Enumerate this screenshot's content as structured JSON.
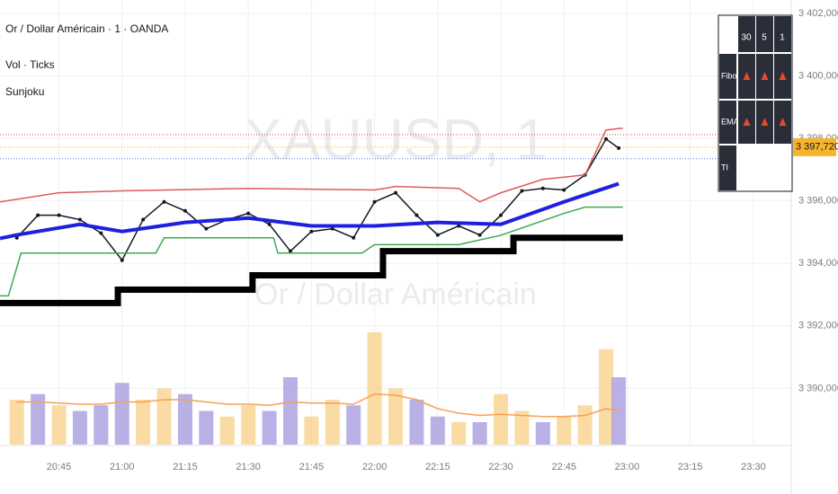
{
  "chart_data": {
    "type": "line",
    "legend_lines": [
      "Or / Dollar Américain · 1 · OANDA",
      "Vol · Ticks",
      "Sunjoku"
    ],
    "watermark": [
      "XAUUSD, 1",
      "Or / Dollar Américain"
    ],
    "xlim": [
      "20:31",
      "23:39"
    ],
    "xticks": [
      "20:45",
      "21:00",
      "21:15",
      "21:30",
      "21:45",
      "22:00",
      "22:15",
      "22:30",
      "22:45",
      "23:00",
      "23:15",
      "23:30"
    ],
    "ylim": [
      3388.2,
      3402.43
    ],
    "yticks": [
      {
        "value": 3402,
        "label": "3 402,000"
      },
      {
        "value": 3400,
        "label": "3 400,000"
      },
      {
        "value": 3398,
        "label": "3 398,000"
      },
      {
        "value": 3396,
        "label": "3 396,000"
      },
      {
        "value": 3394,
        "label": "3 394,000"
      },
      {
        "value": 3392,
        "label": "3 392,000"
      },
      {
        "value": 3390,
        "label": "3 390,000"
      }
    ],
    "grid": true,
    "last_price": {
      "value": 3397.72,
      "label": "3 397,720",
      "color": "#f7b52c"
    },
    "price_lines": [
      {
        "value": 3398.12,
        "color": "#e04848"
      },
      {
        "value": 3397.72,
        "color": "#f7b52c"
      },
      {
        "value": 3397.35,
        "color": "#4a7de0"
      }
    ],
    "series": [
      {
        "name": "Price",
        "color": "#131722",
        "x": [
          "20:35",
          "20:40",
          "20:45",
          "20:50",
          "20:55",
          "21:00",
          "21:05",
          "21:10",
          "21:15",
          "21:20",
          "21:25",
          "21:30",
          "21:35",
          "21:40",
          "21:45",
          "21:50",
          "21:55",
          "22:00",
          "22:05",
          "22:10",
          "22:15",
          "22:20",
          "22:25",
          "22:30",
          "22:35",
          "22:40",
          "22:45",
          "22:50",
          "22:55",
          "22:58"
        ],
        "values": [
          3394.82,
          3395.54,
          3395.54,
          3395.4,
          3394.97,
          3394.1,
          3395.4,
          3395.97,
          3395.68,
          3395.11,
          3395.4,
          3395.6,
          3395.25,
          3394.39,
          3395.02,
          3395.11,
          3394.82,
          3395.97,
          3396.26,
          3395.54,
          3394.91,
          3395.2,
          3394.91,
          3395.54,
          3396.32,
          3396.4,
          3396.35,
          3396.83,
          3397.98,
          3397.69
        ]
      },
      {
        "name": "Baseline",
        "color": "#000000",
        "x": [
          "20:31",
          "20:59",
          "20:59",
          "21:31",
          "21:31",
          "22:02",
          "22:02",
          "22:33",
          "22:33",
          "22:59"
        ],
        "values": [
          3392.73,
          3392.73,
          3393.16,
          3393.16,
          3393.62,
          3393.62,
          3394.39,
          3394.39,
          3394.82,
          3394.82
        ]
      },
      {
        "name": "Trend",
        "color": "#1f1fe0",
        "x": [
          "20:31",
          "20:35",
          "20:50",
          "21:00",
          "21:15",
          "21:30",
          "21:45",
          "22:00",
          "22:15",
          "22:30",
          "22:45",
          "22:58"
        ],
        "values": [
          3394.8,
          3394.91,
          3395.25,
          3395.02,
          3395.31,
          3395.45,
          3395.2,
          3395.2,
          3395.31,
          3395.25,
          3395.97,
          3396.55
        ]
      },
      {
        "name": "Upper",
        "color": "#e05a5a",
        "x": [
          "20:31",
          "20:45",
          "21:00",
          "21:30",
          "22:00",
          "22:05",
          "22:20",
          "22:25",
          "22:30",
          "22:40",
          "22:50",
          "22:55",
          "22:59"
        ],
        "values": [
          3395.97,
          3396.26,
          3396.32,
          3396.4,
          3396.35,
          3396.46,
          3396.4,
          3395.97,
          3396.26,
          3396.69,
          3396.83,
          3398.27,
          3398.33
        ]
      },
      {
        "name": "Lower",
        "color": "#3caa50",
        "x": [
          "20:31",
          "20:33",
          "20:36",
          "21:08",
          "21:10",
          "21:36",
          "21:37",
          "21:57",
          "22:00",
          "22:20",
          "22:30",
          "22:45",
          "22:50",
          "22:59"
        ],
        "values": [
          3392.96,
          3392.96,
          3394.33,
          3394.33,
          3394.82,
          3394.82,
          3394.33,
          3394.33,
          3394.6,
          3394.6,
          3394.9,
          3395.6,
          3395.8,
          3395.8
        ]
      }
    ],
    "volume": {
      "color_up": "#f7d28c",
      "color_down": "#a89ee0",
      "up": [
        true,
        false,
        true,
        false,
        false,
        false,
        true,
        true,
        false,
        false,
        true,
        true,
        false,
        false,
        true,
        true,
        false,
        true,
        true,
        false,
        false,
        true,
        false,
        true,
        true,
        false,
        true,
        true,
        true,
        false
      ],
      "values": [
        40,
        45,
        35,
        30,
        35,
        55,
        40,
        50,
        45,
        30,
        25,
        35,
        30,
        60,
        25,
        40,
        35,
        100,
        50,
        40,
        25,
        20,
        20,
        45,
        30,
        20,
        25,
        35,
        85,
        60
      ],
      "ma_color": "#f5a05a",
      "ma": [
        38,
        38,
        37,
        36,
        36,
        38,
        38,
        40,
        40,
        38,
        36,
        36,
        35,
        38,
        37,
        37,
        36,
        45,
        44,
        40,
        32,
        28,
        26,
        27,
        26,
        25,
        25,
        26,
        32,
        30
      ]
    },
    "signal_table": {
      "columns": [
        "30",
        "5",
        "1"
      ],
      "rows": [
        "Fibo",
        "EMA",
        "TI"
      ]
    }
  }
}
